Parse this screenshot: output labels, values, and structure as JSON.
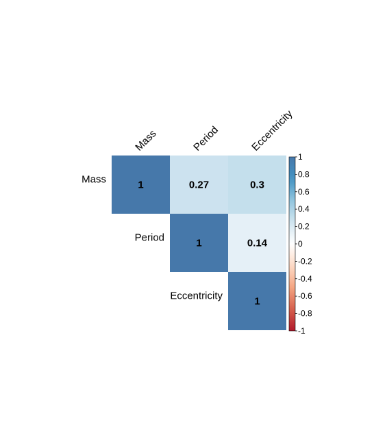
{
  "chart_data": {
    "type": "heatmap",
    "layout": "upper-triangular correlation matrix",
    "variables": [
      "Mass",
      "Period",
      "Eccentricity"
    ],
    "matrix": [
      [
        1,
        0.27,
        0.3
      ],
      [
        null,
        1,
        0.14
      ],
      [
        null,
        null,
        1
      ]
    ],
    "value_labels": [
      [
        "1",
        "0.27",
        "0.3"
      ],
      [
        null,
        "1",
        "0.14"
      ],
      [
        null,
        null,
        "1"
      ]
    ],
    "colorbar": {
      "range": [
        -1,
        1
      ],
      "ticks": [
        "1",
        "0.8",
        "0.6",
        "0.4",
        "0.2",
        "0",
        "-0.2",
        "-0.4",
        "-0.6",
        "-0.8",
        "-1"
      ],
      "placement": "right",
      "colors": {
        "negative": "#b2182b",
        "zero": "#ffffff",
        "positive": "#2166ac"
      }
    },
    "column_label_rotation": "diagonal",
    "grid": false
  }
}
